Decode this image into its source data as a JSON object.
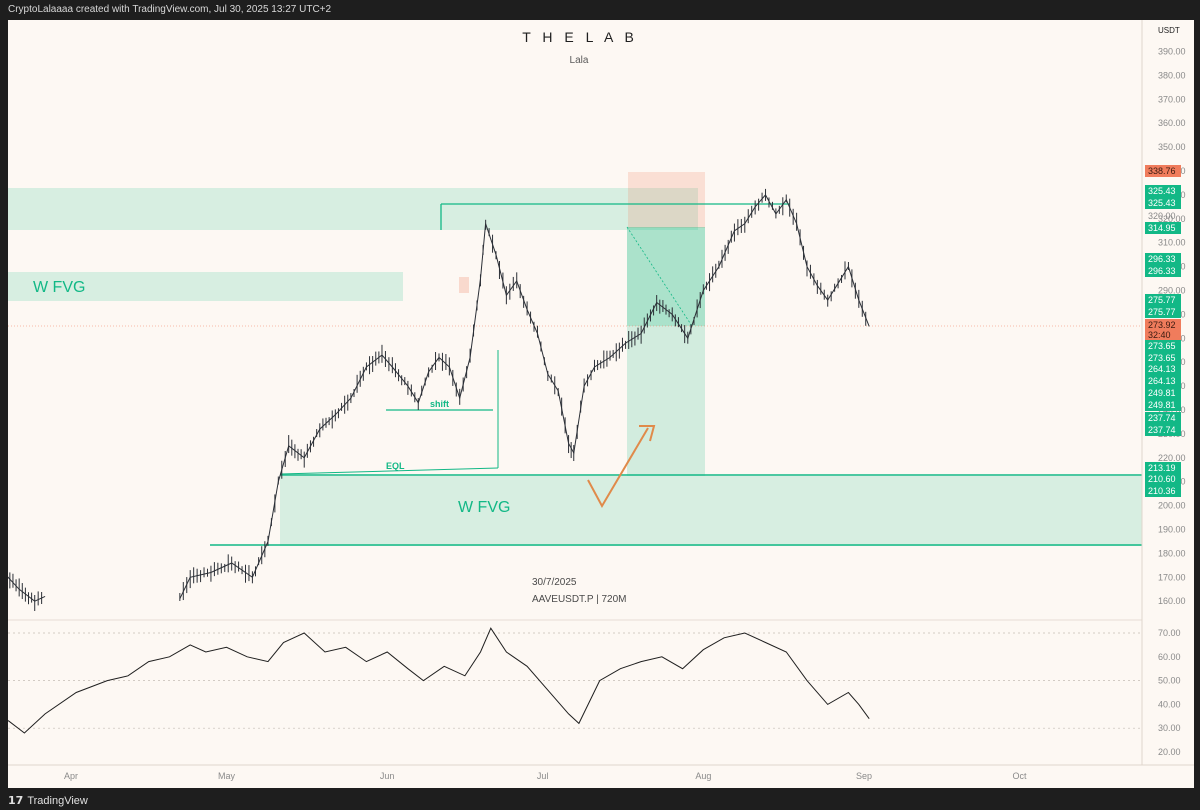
{
  "header": {
    "credit": "CryptoLalaaaa created with TradingView.com, Jul 30, 2025 13:27 UTC+2"
  },
  "footer": {
    "brand": "TradingView"
  },
  "colors": {
    "background": "#fdf8f3",
    "zone_green": "#10b981",
    "price_green": "#12b886",
    "price_red": "#f07c5c",
    "arrow_orange": "#e08a4a",
    "candle": "#2b2f36"
  },
  "icons": {
    "brand": "tradingview-logo-icon"
  },
  "chart_data": {
    "type": "candlestick",
    "title": "T H E  L A B",
    "subtitle": "Lala",
    "watermark_date": "30/7/2025",
    "watermark_symbol": "AAVEUSDT.P | 720M",
    "currency": "USDT",
    "ylim": [
      150,
      400
    ],
    "yticks": [
      "390.00",
      "380.00",
      "370.00",
      "360.00",
      "350.00",
      "340.00",
      "330.00",
      "320.00",
      "310.00",
      "300.00",
      "290.00",
      "280.00",
      "270.00",
      "260.00",
      "250.00",
      "240.00",
      "230.00",
      "220.00",
      "210.00",
      "200.00",
      "190.00",
      "180.00",
      "170.00",
      "160.00"
    ],
    "xticks": [
      {
        "label": "Apr",
        "date": "2025-04-01"
      },
      {
        "label": "May",
        "date": "2025-05-01"
      },
      {
        "label": "Jun",
        "date": "2025-06-01"
      },
      {
        "label": "Jul",
        "date": "2025-07-01"
      },
      {
        "label": "Aug",
        "date": "2025-08-01"
      },
      {
        "label": "Sep",
        "date": "2025-09-01"
      },
      {
        "label": "Oct",
        "date": "2025-10-01"
      }
    ],
    "price_path": [
      [
        "2025-03-01",
        190
      ],
      [
        "2025-03-04",
        195
      ],
      [
        "2025-03-07",
        198
      ],
      [
        "2025-03-10",
        205
      ],
      [
        "2025-03-13",
        195
      ],
      [
        "2025-03-16",
        183
      ],
      [
        "2025-03-19",
        172
      ],
      [
        "2025-03-22",
        165
      ],
      [
        "2025-03-25",
        160
      ],
      [
        "2025-03-27",
        162
      ],
      [
        "2025-04-22",
        161
      ],
      [
        "2025-04-24",
        170
      ],
      [
        "2025-04-28",
        172
      ],
      [
        "2025-05-02",
        176
      ],
      [
        "2025-05-06",
        170
      ],
      [
        "2025-05-09",
        185
      ],
      [
        "2025-05-11",
        210
      ],
      [
        "2025-05-13",
        225
      ],
      [
        "2025-05-16",
        220
      ],
      [
        "2025-05-19",
        232
      ],
      [
        "2025-05-22",
        238
      ],
      [
        "2025-05-25",
        245
      ],
      [
        "2025-05-28",
        258
      ],
      [
        "2025-05-31",
        263
      ],
      [
        "2025-06-02",
        258
      ],
      [
        "2025-06-05",
        250
      ],
      [
        "2025-06-07",
        243
      ],
      [
        "2025-06-09",
        256
      ],
      [
        "2025-06-11",
        262
      ],
      [
        "2025-06-13",
        258
      ],
      [
        "2025-06-15",
        245
      ],
      [
        "2025-06-17",
        262
      ],
      [
        "2025-06-19",
        295
      ],
      [
        "2025-06-20",
        318
      ],
      [
        "2025-06-22",
        305
      ],
      [
        "2025-06-24",
        288
      ],
      [
        "2025-06-26",
        294
      ],
      [
        "2025-06-28",
        282
      ],
      [
        "2025-06-30",
        272
      ],
      [
        "2025-07-02",
        255
      ],
      [
        "2025-07-04",
        248
      ],
      [
        "2025-07-06",
        226
      ],
      [
        "2025-07-07",
        222
      ],
      [
        "2025-07-09",
        250
      ],
      [
        "2025-07-11",
        258
      ],
      [
        "2025-07-14",
        262
      ],
      [
        "2025-07-17",
        268
      ],
      [
        "2025-07-20",
        272
      ],
      [
        "2025-07-23",
        285
      ],
      [
        "2025-07-26",
        280
      ],
      [
        "2025-07-29",
        270
      ],
      [
        "2025-08-01",
        290
      ],
      [
        "2025-08-04",
        300
      ],
      [
        "2025-08-07",
        315
      ],
      [
        "2025-08-09",
        318
      ],
      [
        "2025-08-11",
        325
      ],
      [
        "2025-08-13",
        330
      ],
      [
        "2025-08-15",
        322
      ],
      [
        "2025-08-17",
        328
      ],
      [
        "2025-08-19",
        318
      ],
      [
        "2025-08-21",
        300
      ],
      [
        "2025-08-23",
        292
      ],
      [
        "2025-08-25",
        286
      ],
      [
        "2025-08-27",
        293
      ],
      [
        "2025-08-29",
        300
      ],
      [
        "2025-08-31",
        286
      ],
      [
        "2025-09-02",
        275
      ]
    ],
    "rsi": {
      "levels": [
        70,
        50,
        30
      ],
      "yticks": [
        "70.00",
        "60.00",
        "50.00",
        "40.00",
        "30.00",
        "20.00"
      ],
      "ylim": [
        15,
        75
      ],
      "path": [
        [
          "2025-03-01",
          48
        ],
        [
          "2025-03-05",
          55
        ],
        [
          "2025-03-08",
          50
        ],
        [
          "2025-03-12",
          42
        ],
        [
          "2025-03-16",
          38
        ],
        [
          "2025-03-20",
          33
        ],
        [
          "2025-03-23",
          28
        ],
        [
          "2025-03-27",
          36
        ],
        [
          "2025-04-02",
          45
        ],
        [
          "2025-04-08",
          50
        ],
        [
          "2025-04-12",
          52
        ],
        [
          "2025-04-16",
          58
        ],
        [
          "2025-04-20",
          60
        ],
        [
          "2025-04-24",
          65
        ],
        [
          "2025-04-27",
          62
        ],
        [
          "2025-05-01",
          64
        ],
        [
          "2025-05-05",
          60
        ],
        [
          "2025-05-09",
          58
        ],
        [
          "2025-05-12",
          66
        ],
        [
          "2025-05-16",
          70
        ],
        [
          "2025-05-20",
          62
        ],
        [
          "2025-05-24",
          64
        ],
        [
          "2025-05-28",
          58
        ],
        [
          "2025-06-01",
          62
        ],
        [
          "2025-06-05",
          55
        ],
        [
          "2025-06-08",
          50
        ],
        [
          "2025-06-12",
          56
        ],
        [
          "2025-06-16",
          52
        ],
        [
          "2025-06-19",
          62
        ],
        [
          "2025-06-21",
          72
        ],
        [
          "2025-06-24",
          62
        ],
        [
          "2025-06-28",
          56
        ],
        [
          "2025-07-02",
          46
        ],
        [
          "2025-07-06",
          36
        ],
        [
          "2025-07-08",
          32
        ],
        [
          "2025-07-12",
          50
        ],
        [
          "2025-07-16",
          55
        ],
        [
          "2025-07-20",
          58
        ],
        [
          "2025-07-24",
          60
        ],
        [
          "2025-07-28",
          55
        ],
        [
          "2025-08-01",
          63
        ],
        [
          "2025-08-05",
          68
        ],
        [
          "2025-08-09",
          70
        ],
        [
          "2025-08-13",
          66
        ],
        [
          "2025-08-17",
          62
        ],
        [
          "2025-08-21",
          50
        ],
        [
          "2025-08-25",
          40
        ],
        [
          "2025-08-29",
          45
        ],
        [
          "2025-08-31",
          40
        ],
        [
          "2025-09-02",
          34
        ]
      ]
    },
    "annotations": {
      "top_zone_labels": [],
      "left_fvg_label": "W FVG",
      "lower_fvg_label": "W FVG",
      "shift_label": "shift",
      "eql_label": "EQL"
    },
    "price_labels": [
      {
        "text": "338.76",
        "color": "red"
      },
      {
        "text": "325.43",
        "color": "green"
      },
      {
        "text": "325.43",
        "color": "green"
      },
      {
        "text": "320.00",
        "color": "none"
      },
      {
        "text": "314.95",
        "color": "green"
      },
      {
        "text": "296.33",
        "color": "green"
      },
      {
        "text": "296.33",
        "color": "green"
      },
      {
        "text": "275.77",
        "color": "green"
      },
      {
        "text": "275.77",
        "color": "green"
      },
      {
        "text": "273.92",
        "color": "red"
      },
      {
        "text": "32:40",
        "color": "red"
      },
      {
        "text": "273.65",
        "color": "green"
      },
      {
        "text": "273.65",
        "color": "green"
      },
      {
        "text": "264.13",
        "color": "green"
      },
      {
        "text": "264.13",
        "color": "green"
      },
      {
        "text": "249.81",
        "color": "green"
      },
      {
        "text": "249.81",
        "color": "green"
      },
      {
        "text": "237.74",
        "color": "green"
      },
      {
        "text": "237.74",
        "color": "green"
      },
      {
        "text": "213.19",
        "color": "green"
      },
      {
        "text": "210.60",
        "color": "green"
      },
      {
        "text": "210.36",
        "color": "green"
      }
    ]
  }
}
